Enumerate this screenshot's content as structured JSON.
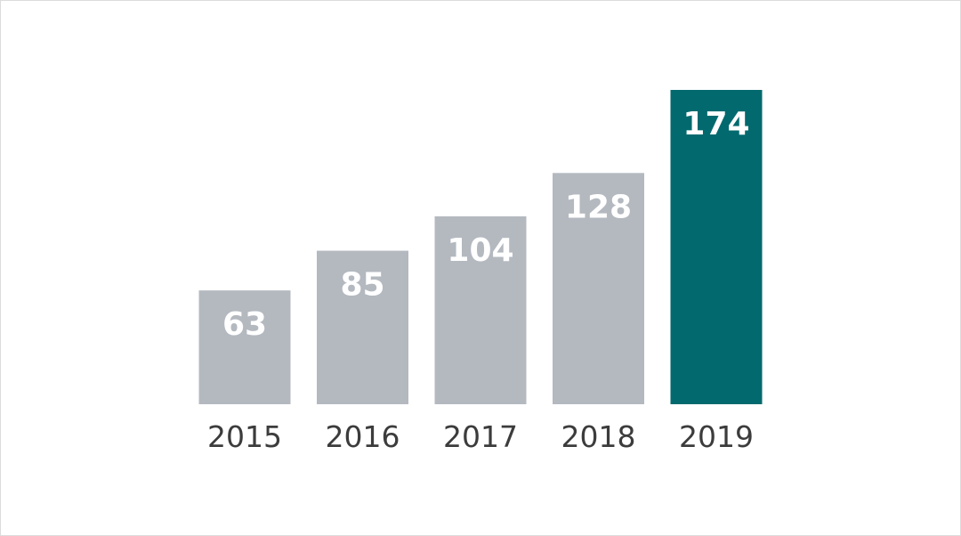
{
  "chart_data": {
    "type": "bar",
    "categories": [
      "2015",
      "2016",
      "2017",
      "2018",
      "2019"
    ],
    "values": [
      63,
      85,
      104,
      128,
      174
    ],
    "title": "",
    "xlabel": "",
    "ylabel": "",
    "ylim": [
      0,
      174
    ],
    "grid": false,
    "legend": "none",
    "data_labels": [
      "63",
      "85",
      "104",
      "128",
      "174"
    ],
    "colors": {
      "default_bar": "#b4b9c0",
      "highlight_bar": "#026a6e",
      "highlight_category": "2019",
      "data_label": "#ffffff",
      "tick_label": "#3c3c3c"
    }
  }
}
